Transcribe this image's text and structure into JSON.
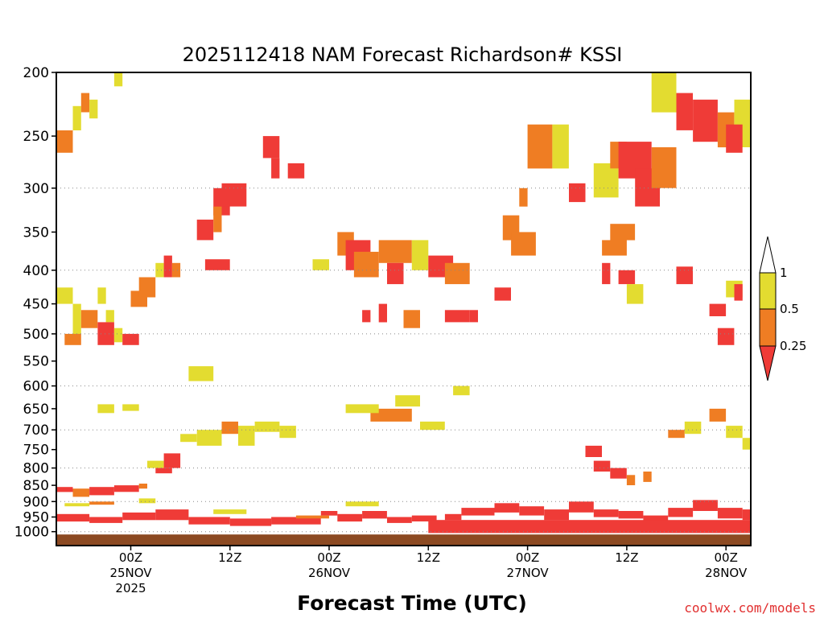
{
  "chart_data": {
    "type": "heatmap",
    "title": "2025112418 NAM Forecast Richardson# KSSI",
    "xlabel": "Forecast Time (UTC)",
    "ylabel": "",
    "credit": "coolwx.com/models",
    "x_range_hours": [
      -9,
      75
    ],
    "y_range_hpa": [
      200,
      1050
    ],
    "y_scale": "log-pressure",
    "y_ticks": [
      200,
      250,
      300,
      350,
      400,
      450,
      500,
      550,
      600,
      650,
      700,
      750,
      800,
      850,
      900,
      950,
      1000
    ],
    "y_gridlines": [
      300,
      400,
      500,
      600,
      700,
      800,
      900,
      1000
    ],
    "x_ticks": [
      {
        "hour": 0,
        "label": "00Z",
        "sub": [
          "25NOV",
          "2025"
        ]
      },
      {
        "hour": 12,
        "label": "12Z",
        "sub": []
      },
      {
        "hour": 24,
        "label": "00Z",
        "sub": [
          "26NOV"
        ]
      },
      {
        "hour": 36,
        "label": "12Z",
        "sub": []
      },
      {
        "hour": 48,
        "label": "00Z",
        "sub": [
          "27NOV"
        ]
      },
      {
        "hour": 60,
        "label": "12Z",
        "sub": []
      },
      {
        "hour": 72,
        "label": "00Z",
        "sub": [
          "28NOV"
        ]
      }
    ],
    "legend": {
      "position": "right",
      "levels": [
        "1",
        "0.5",
        "0.25"
      ],
      "bins": [
        {
          "range": "<0.25",
          "color": "#ef3b37"
        },
        {
          "range": "0.25-0.5",
          "color": "#ef7d23"
        },
        {
          "range": "0.5-1",
          "color": "#e3dc30"
        },
        {
          "range": ">1",
          "color": "#ffffff"
        }
      ]
    },
    "colors": {
      "low": "#ef3b37",
      "mid": "#ef7d23",
      "high": "#e3dc30",
      "ground": "#8c4a22"
    },
    "ground_pressure_hpa": 1010,
    "cells_format": "[start_hour, end_hour, top_hpa, bottom_hpa, bin] ; bin 0=<0.25 red, 1=0.25-0.5 orange, 2=0.5-1 yellow",
    "cells": [
      [
        -9,
        -7,
        245,
        265,
        1
      ],
      [
        -7,
        -6,
        225,
        245,
        2
      ],
      [
        -6,
        -5,
        215,
        230,
        1
      ],
      [
        -5,
        -4,
        220,
        235,
        2
      ],
      [
        -2,
        -1,
        200,
        210,
        2
      ],
      [
        -9,
        -7,
        425,
        450,
        2
      ],
      [
        -7,
        -6,
        450,
        500,
        2
      ],
      [
        -6,
        -4,
        460,
        490,
        1
      ],
      [
        -4,
        -3,
        425,
        450,
        2
      ],
      [
        -3,
        -2,
        460,
        480,
        2
      ],
      [
        -8,
        -6,
        500,
        520,
        1
      ],
      [
        -4,
        -2,
        480,
        520,
        0
      ],
      [
        -2,
        -1,
        490,
        515,
        2
      ],
      [
        -1,
        1,
        500,
        520,
        0
      ],
      [
        0,
        2,
        430,
        455,
        1
      ],
      [
        1,
        3,
        410,
        440,
        1
      ],
      [
        3,
        4,
        390,
        410,
        2
      ],
      [
        4,
        5,
        380,
        410,
        0
      ],
      [
        5,
        6,
        390,
        410,
        1
      ],
      [
        -4,
        -2,
        640,
        660,
        2
      ],
      [
        -1,
        1,
        640,
        655,
        2
      ],
      [
        2,
        4,
        780,
        800,
        2
      ],
      [
        4,
        6,
        760,
        800,
        0
      ],
      [
        3,
        5,
        800,
        815,
        0
      ],
      [
        -9,
        -7,
        855,
        870,
        0
      ],
      [
        -7,
        -5,
        860,
        885,
        1
      ],
      [
        -5,
        -2,
        855,
        880,
        0
      ],
      [
        -2,
        1,
        850,
        870,
        0
      ],
      [
        1,
        2,
        845,
        860,
        1
      ],
      [
        -8,
        -5,
        905,
        915,
        2
      ],
      [
        -5,
        -2,
        900,
        910,
        1
      ],
      [
        1,
        3,
        890,
        905,
        2
      ],
      [
        7,
        10,
        560,
        590,
        2
      ],
      [
        6,
        8,
        710,
        730,
        2
      ],
      [
        8,
        11,
        700,
        740,
        2
      ],
      [
        11,
        13,
        680,
        710,
        1
      ],
      [
        13,
        15,
        690,
        740,
        2
      ],
      [
        15,
        18,
        680,
        705,
        2
      ],
      [
        18,
        20,
        690,
        720,
        2
      ],
      [
        10,
        12,
        300,
        330,
        0
      ],
      [
        11,
        14,
        295,
        320,
        0
      ],
      [
        8,
        10,
        335,
        360,
        0
      ],
      [
        10,
        11,
        320,
        350,
        1
      ],
      [
        9,
        12,
        385,
        400,
        0
      ],
      [
        16,
        18,
        250,
        270,
        0
      ],
      [
        17,
        18,
        270,
        290,
        0
      ],
      [
        19,
        21,
        275,
        290,
        0
      ],
      [
        22,
        24,
        385,
        400,
        2
      ],
      [
        25,
        27,
        350,
        380,
        1
      ],
      [
        26,
        29,
        360,
        400,
        0
      ],
      [
        27,
        30,
        375,
        410,
        1
      ],
      [
        30,
        34,
        360,
        390,
        1
      ],
      [
        31,
        33,
        390,
        420,
        0
      ],
      [
        34,
        36,
        360,
        400,
        2
      ],
      [
        36,
        39,
        380,
        410,
        0
      ],
      [
        38,
        41,
        390,
        420,
        1
      ],
      [
        28,
        29,
        460,
        480,
        0
      ],
      [
        30,
        31,
        450,
        480,
        0
      ],
      [
        33,
        35,
        460,
        490,
        1
      ],
      [
        38,
        41,
        460,
        480,
        0
      ],
      [
        41,
        42,
        460,
        480,
        0
      ],
      [
        29,
        34,
        650,
        680,
        1
      ],
      [
        26,
        30,
        640,
        660,
        2
      ],
      [
        32,
        35,
        620,
        645,
        2
      ],
      [
        35,
        38,
        680,
        700,
        2
      ],
      [
        39,
        41,
        600,
        620,
        2
      ],
      [
        45,
        47,
        330,
        360,
        1
      ],
      [
        46,
        49,
        350,
        380,
        1
      ],
      [
        47,
        48,
        300,
        320,
        1
      ],
      [
        44,
        46,
        425,
        445,
        0
      ],
      [
        48,
        51,
        240,
        280,
        1
      ],
      [
        51,
        53,
        240,
        280,
        2
      ],
      [
        53,
        55,
        295,
        315,
        0
      ],
      [
        56,
        59,
        275,
        310,
        2
      ],
      [
        58,
        60,
        255,
        280,
        1
      ],
      [
        59,
        63,
        255,
        290,
        0
      ],
      [
        61,
        64,
        280,
        320,
        0
      ],
      [
        63,
        66,
        260,
        300,
        1
      ],
      [
        57,
        60,
        360,
        380,
        1
      ],
      [
        58,
        61,
        340,
        360,
        1
      ],
      [
        59,
        61,
        400,
        420,
        0
      ],
      [
        60,
        62,
        420,
        450,
        2
      ],
      [
        57,
        58,
        390,
        420,
        0
      ],
      [
        63,
        66,
        200,
        230,
        2
      ],
      [
        66,
        68,
        215,
        245,
        0
      ],
      [
        68,
        71,
        220,
        255,
        0
      ],
      [
        71,
        73,
        230,
        260,
        1
      ],
      [
        73,
        75,
        220,
        260,
        2
      ],
      [
        72,
        74,
        240,
        265,
        0
      ],
      [
        66,
        68,
        395,
        420,
        0
      ],
      [
        70,
        72,
        450,
        470,
        0
      ],
      [
        72,
        74,
        415,
        440,
        2
      ],
      [
        71,
        73,
        490,
        520,
        0
      ],
      [
        73,
        74,
        420,
        445,
        0
      ],
      [
        65,
        67,
        700,
        720,
        1
      ],
      [
        67,
        69,
        680,
        710,
        2
      ],
      [
        70,
        72,
        650,
        680,
        1
      ],
      [
        72,
        74,
        690,
        720,
        2
      ],
      [
        74,
        75,
        720,
        750,
        2
      ],
      [
        55,
        57,
        740,
        770,
        0
      ],
      [
        56,
        58,
        780,
        810,
        0
      ],
      [
        58,
        60,
        800,
        830,
        0
      ],
      [
        60,
        61,
        820,
        850,
        1
      ],
      [
        62,
        63,
        810,
        840,
        1
      ],
      [
        23,
        25,
        930,
        945,
        0
      ],
      [
        25,
        28,
        940,
        965,
        0
      ],
      [
        28,
        31,
        930,
        955,
        0
      ],
      [
        31,
        34,
        950,
        970,
        0
      ],
      [
        34,
        37,
        945,
        965,
        0
      ],
      [
        38,
        40,
        940,
        960,
        0
      ],
      [
        40,
        44,
        920,
        945,
        0
      ],
      [
        44,
        47,
        905,
        935,
        0
      ],
      [
        47,
        50,
        915,
        945,
        0
      ],
      [
        50,
        53,
        925,
        960,
        0
      ],
      [
        53,
        56,
        900,
        935,
        0
      ],
      [
        56,
        59,
        925,
        950,
        0
      ],
      [
        59,
        62,
        930,
        955,
        0
      ],
      [
        62,
        65,
        945,
        970,
        0
      ],
      [
        65,
        68,
        920,
        950,
        0
      ],
      [
        68,
        71,
        895,
        930,
        0
      ],
      [
        71,
        74,
        920,
        955,
        0
      ],
      [
        74,
        75,
        925,
        960,
        0
      ],
      [
        36,
        75,
        960,
        1005,
        0
      ],
      [
        -9,
        -5,
        940,
        965,
        0
      ],
      [
        -5,
        -1,
        950,
        970,
        0
      ],
      [
        -1,
        3,
        935,
        960,
        0
      ],
      [
        3,
        7,
        925,
        960,
        0
      ],
      [
        7,
        12,
        950,
        975,
        0
      ],
      [
        12,
        17,
        955,
        980,
        0
      ],
      [
        17,
        23,
        950,
        975,
        0
      ],
      [
        20,
        24,
        945,
        955,
        1
      ],
      [
        10,
        14,
        925,
        940,
        2
      ],
      [
        26,
        30,
        900,
        915,
        2
      ]
    ]
  }
}
